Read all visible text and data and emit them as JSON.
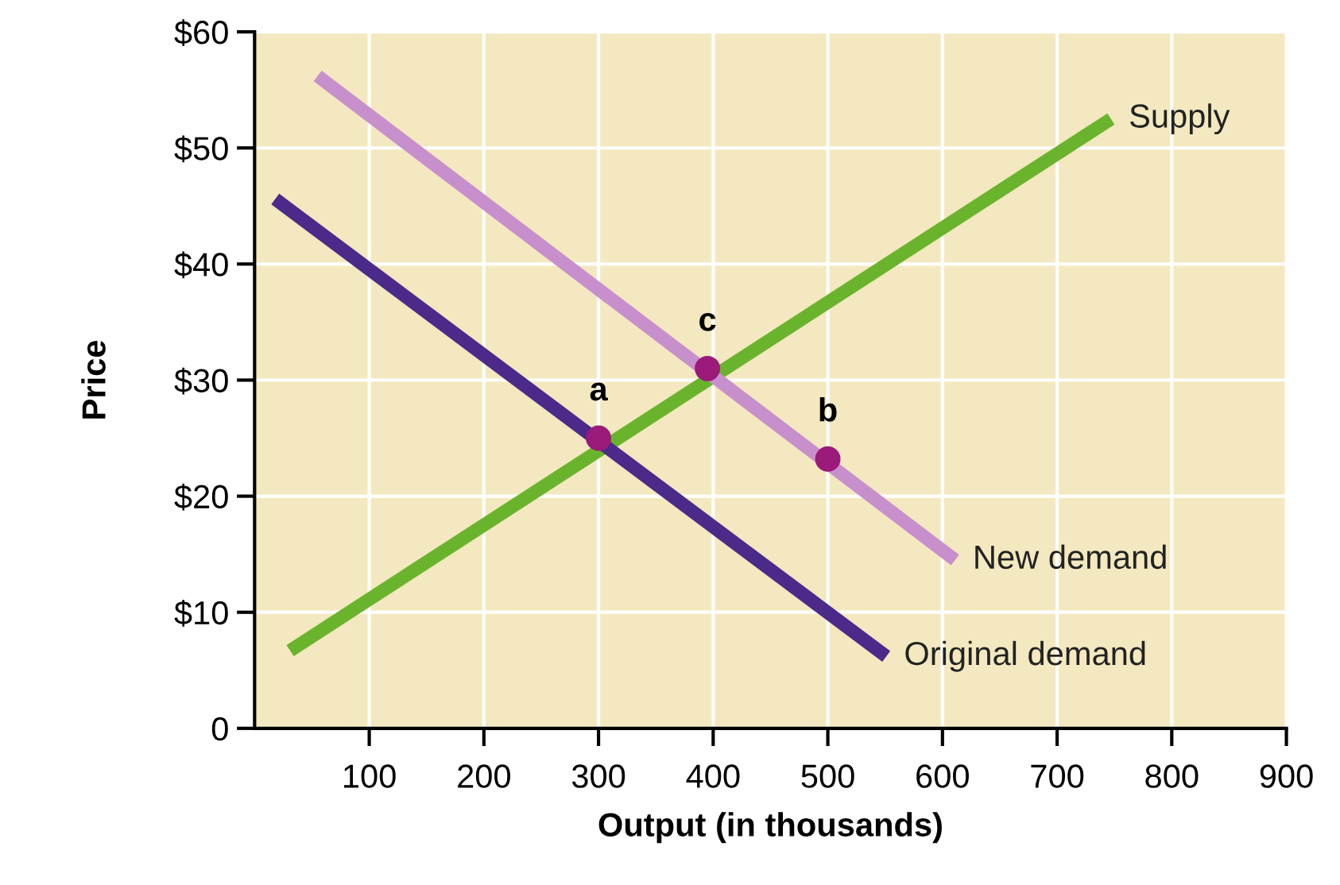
{
  "chart_data": {
    "type": "line",
    "xlabel": "Output (in thousands)",
    "ylabel": "Price",
    "xlim": [
      0,
      900
    ],
    "ylim": [
      0,
      60
    ],
    "xticks": [
      100,
      200,
      300,
      400,
      500,
      600,
      700,
      800,
      900
    ],
    "yticks": [
      0,
      {
        "value": 10,
        "label": "$10"
      },
      {
        "value": 20,
        "label": "$20"
      },
      {
        "value": 30,
        "label": "$30"
      },
      {
        "value": 40,
        "label": "$40"
      },
      {
        "value": 50,
        "label": "$50"
      },
      {
        "value": 60,
        "label": "$60"
      }
    ],
    "grid": true,
    "legend": false,
    "marker": "none",
    "line_style": "solid",
    "series": [
      {
        "name": "Supply",
        "color": "#6ab42d",
        "x": [
          31,
          747
        ],
        "values": [
          6.7,
          52.5
        ]
      },
      {
        "name": "New demand",
        "color": "#c88fcd",
        "x": [
          55,
          611
        ],
        "values": [
          56.2,
          14.5
        ]
      },
      {
        "name": "Original demand",
        "color": "#4b2a8a",
        "x": [
          18,
          551
        ],
        "values": [
          45.6,
          6.2
        ]
      },
      {
        "type": "scatter",
        "color": "#9b1a7a",
        "x": [
          300,
          395,
          500
        ],
        "values": [
          25,
          31,
          23.2
        ],
        "marker": "circle"
      }
    ],
    "annotations": [
      {
        "text": "a",
        "x": 300,
        "y": 25
      },
      {
        "text": "c",
        "x": 395,
        "y": 31
      },
      {
        "text": "b",
        "x": 500,
        "y": 23.2
      }
    ]
  }
}
